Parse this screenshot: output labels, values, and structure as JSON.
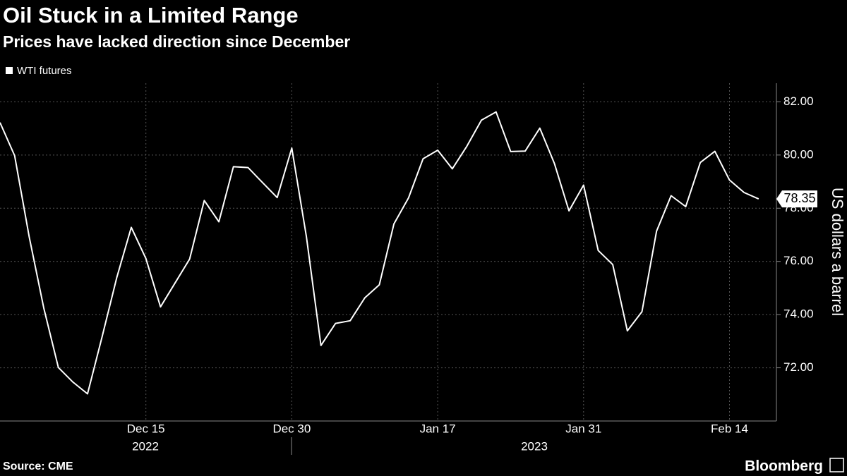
{
  "chart_data": {
    "type": "line",
    "title": "Oil Stuck in a Limited Range",
    "subtitle": "Prices have lacked direction since December",
    "y_axis_label": "US dollars a barrel",
    "source": "Source: CME",
    "brand": "Bloomberg",
    "x": [
      "2022-12-01",
      "2022-12-02",
      "2022-12-05",
      "2022-12-06",
      "2022-12-07",
      "2022-12-08",
      "2022-12-09",
      "2022-12-12",
      "2022-12-13",
      "2022-12-14",
      "2022-12-15",
      "2022-12-16",
      "2022-12-19",
      "2022-12-20",
      "2022-12-21",
      "2022-12-22",
      "2022-12-23",
      "2022-12-27",
      "2022-12-28",
      "2022-12-29",
      "2022-12-30",
      "2023-01-03",
      "2023-01-04",
      "2023-01-05",
      "2023-01-06",
      "2023-01-09",
      "2023-01-10",
      "2023-01-11",
      "2023-01-12",
      "2023-01-13",
      "2023-01-17",
      "2023-01-18",
      "2023-01-19",
      "2023-01-20",
      "2023-01-23",
      "2023-01-24",
      "2023-01-25",
      "2023-01-26",
      "2023-01-27",
      "2023-01-30",
      "2023-01-31",
      "2023-02-01",
      "2023-02-02",
      "2023-02-03",
      "2023-02-06",
      "2023-02-07",
      "2023-02-08",
      "2023-02-09",
      "2023-02-10",
      "2023-02-13",
      "2023-02-14",
      "2023-02-15",
      "2023-02-16"
    ],
    "series": [
      {
        "name": "WTI futures",
        "color": "#ffffff",
        "values": [
          81.22,
          79.98,
          76.93,
          74.25,
          72.01,
          71.46,
          71.02,
          73.17,
          75.39,
          77.28,
          76.11,
          74.29,
          75.19,
          76.09,
          78.29,
          77.49,
          79.56,
          79.53,
          78.96,
          78.4,
          80.26,
          76.93,
          72.84,
          73.67,
          73.77,
          74.63,
          75.12,
          77.41,
          78.39,
          79.86,
          80.18,
          79.48,
          80.33,
          81.31,
          81.62,
          80.13,
          80.15,
          81.01,
          79.68,
          77.9,
          78.87,
          76.41,
          75.88,
          73.39,
          74.11,
          77.14,
          78.47,
          78.06,
          79.72,
          80.14,
          79.06,
          78.59,
          78.35
        ]
      }
    ],
    "xticks": [
      {
        "value": "2022-12-15",
        "label": "Dec 15"
      },
      {
        "value": "2022-12-30",
        "label": "Dec 30"
      },
      {
        "value": "2023-01-17",
        "label": "Jan 17"
      },
      {
        "value": "2023-01-31",
        "label": "Jan 31"
      },
      {
        "value": "2023-02-14",
        "label": "Feb 14"
      }
    ],
    "x_group_labels": [
      "2022",
      "2023"
    ],
    "ylim": [
      70,
      82.7
    ],
    "yticks": [
      {
        "value": 72,
        "label": "72.00"
      },
      {
        "value": 74,
        "label": "74.00"
      },
      {
        "value": 76,
        "label": "76.00"
      },
      {
        "value": 78,
        "label": "78.00"
      },
      {
        "value": 80,
        "label": "80.00"
      },
      {
        "value": 82,
        "label": "82.00"
      }
    ],
    "grid": true
  }
}
